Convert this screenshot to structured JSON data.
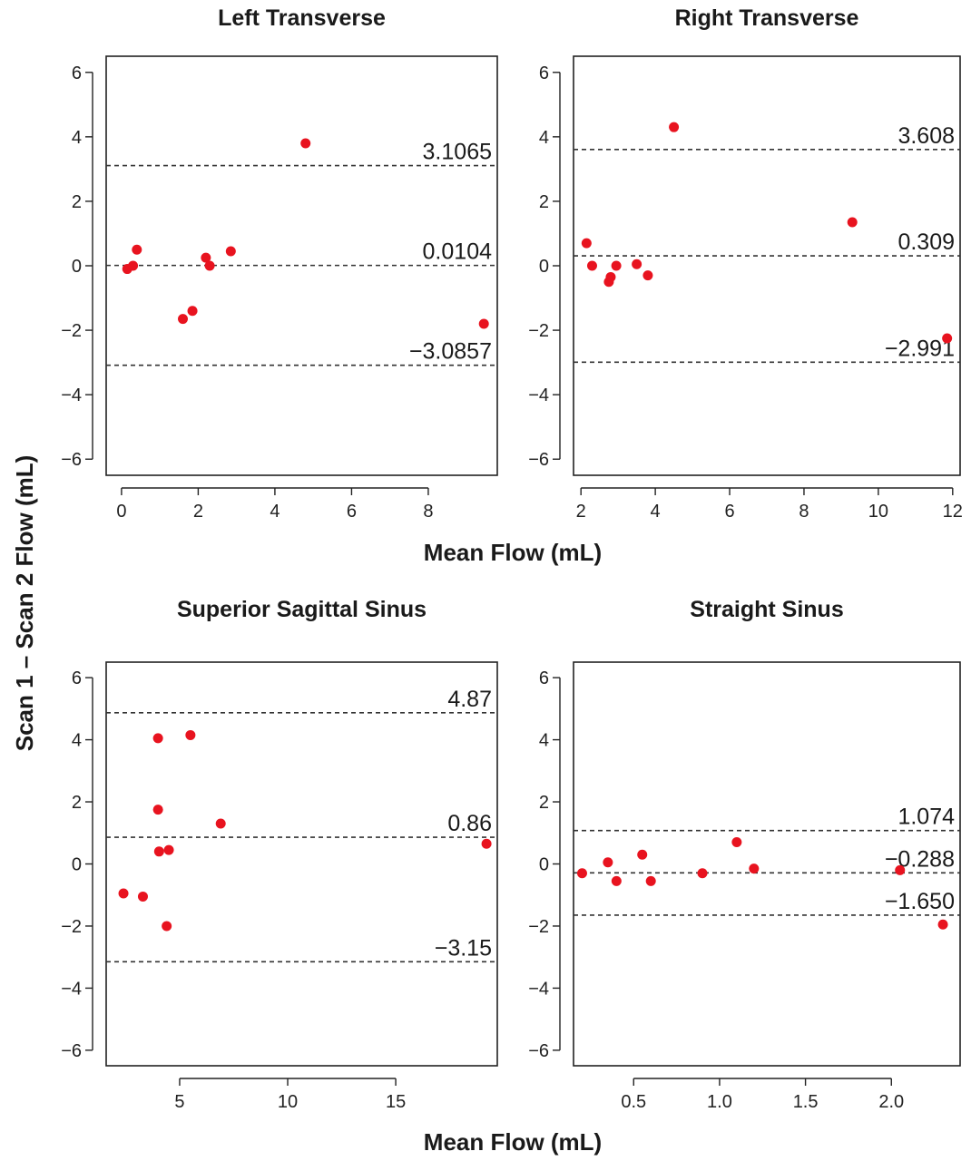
{
  "figure": {
    "ylabel": "Scan 1 – Scan 2 Flow (mL)",
    "colors": {
      "point": "#e8131f",
      "ink": "#1a1a1a"
    }
  },
  "chart_data": [
    {
      "type": "scatter",
      "title": "Left Transverse",
      "xlabel": "Mean Flow (mL)",
      "ylabel": "Scan 1 – Scan 2 Flow (mL)",
      "xlim": [
        -0.4,
        9.8
      ],
      "ylim": [
        -6.5,
        6.5
      ],
      "xticks": [
        0,
        2,
        4,
        6,
        8
      ],
      "yticks": [
        -6,
        -4,
        -2,
        0,
        2,
        4,
        6
      ],
      "points": [
        {
          "x": 0.15,
          "y": -0.1
        },
        {
          "x": 0.3,
          "y": 0.0
        },
        {
          "x": 0.4,
          "y": 0.5
        },
        {
          "x": 1.6,
          "y": -1.65
        },
        {
          "x": 1.85,
          "y": -1.4
        },
        {
          "x": 2.2,
          "y": 0.25
        },
        {
          "x": 2.3,
          "y": 0.0
        },
        {
          "x": 2.85,
          "y": 0.45
        },
        {
          "x": 4.8,
          "y": 3.8
        },
        {
          "x": 9.45,
          "y": -1.8
        }
      ],
      "reference_lines": [
        {
          "y": 3.1065,
          "label": "3.1065"
        },
        {
          "y": 0.0104,
          "label": "0.0104"
        },
        {
          "y": -3.0857,
          "label": "−3.0857"
        }
      ]
    },
    {
      "type": "scatter",
      "title": "Right Transverse",
      "xlabel": "Mean Flow (mL)",
      "xlim": [
        1.8,
        12.2
      ],
      "ylim": [
        -6.5,
        6.5
      ],
      "xticks": [
        2,
        4,
        6,
        8,
        10,
        12
      ],
      "yticks": [
        -6,
        -4,
        -2,
        0,
        2,
        4,
        6
      ],
      "points": [
        {
          "x": 2.15,
          "y": 0.7
        },
        {
          "x": 2.3,
          "y": 0.0
        },
        {
          "x": 2.75,
          "y": -0.5
        },
        {
          "x": 2.8,
          "y": -0.35
        },
        {
          "x": 2.95,
          "y": 0.0
        },
        {
          "x": 3.5,
          "y": 0.05
        },
        {
          "x": 3.8,
          "y": -0.3
        },
        {
          "x": 4.5,
          "y": 4.3
        },
        {
          "x": 9.3,
          "y": 1.35
        },
        {
          "x": 11.85,
          "y": -2.25
        }
      ],
      "reference_lines": [
        {
          "y": 3.608,
          "label": "3.608"
        },
        {
          "y": 0.309,
          "label": "0.309"
        },
        {
          "y": -2.991,
          "label": "−2.991"
        }
      ]
    },
    {
      "type": "scatter",
      "title": "Superior Sagittal Sinus",
      "xlabel": "Mean Flow (mL)",
      "xlim": [
        1.6,
        19.7
      ],
      "ylim": [
        -6.5,
        6.5
      ],
      "xticks": [
        5,
        10,
        15
      ],
      "yticks": [
        -6,
        -4,
        -2,
        0,
        2,
        4,
        6
      ],
      "points": [
        {
          "x": 2.4,
          "y": -0.95
        },
        {
          "x": 3.3,
          "y": -1.05
        },
        {
          "x": 4.0,
          "y": 4.05
        },
        {
          "x": 4.0,
          "y": 1.75
        },
        {
          "x": 4.05,
          "y": 0.4
        },
        {
          "x": 4.5,
          "y": 0.45
        },
        {
          "x": 4.4,
          "y": -2.0
        },
        {
          "x": 5.5,
          "y": 4.15
        },
        {
          "x": 6.9,
          "y": 1.3
        },
        {
          "x": 19.2,
          "y": 0.65
        }
      ],
      "reference_lines": [
        {
          "y": 4.87,
          "label": "4.87"
        },
        {
          "y": 0.86,
          "label": "0.86"
        },
        {
          "y": -3.15,
          "label": "−3.15"
        }
      ]
    },
    {
      "type": "scatter",
      "title": "Straight Sinus",
      "xlabel": "Mean Flow (mL)",
      "xlim": [
        0.15,
        2.4
      ],
      "ylim": [
        -6.5,
        6.5
      ],
      "xticks": [
        0.5,
        1.0,
        1.5,
        2.0
      ],
      "xticklabels": [
        "0.5",
        "1.0",
        "1.5",
        "2.0"
      ],
      "yticks": [
        -6,
        -4,
        -2,
        0,
        2,
        4,
        6
      ],
      "points": [
        {
          "x": 0.2,
          "y": -0.3
        },
        {
          "x": 0.35,
          "y": 0.05
        },
        {
          "x": 0.4,
          "y": -0.55
        },
        {
          "x": 0.55,
          "y": 0.3
        },
        {
          "x": 0.6,
          "y": -0.55
        },
        {
          "x": 0.9,
          "y": -0.3
        },
        {
          "x": 1.1,
          "y": 0.7
        },
        {
          "x": 1.2,
          "y": -0.15
        },
        {
          "x": 2.05,
          "y": -0.2
        },
        {
          "x": 2.3,
          "y": -1.95
        }
      ],
      "reference_lines": [
        {
          "y": 1.074,
          "label": "1.074"
        },
        {
          "y": -0.288,
          "label": "−0.288"
        },
        {
          "y": -1.65,
          "label": "−1.650"
        }
      ]
    }
  ]
}
